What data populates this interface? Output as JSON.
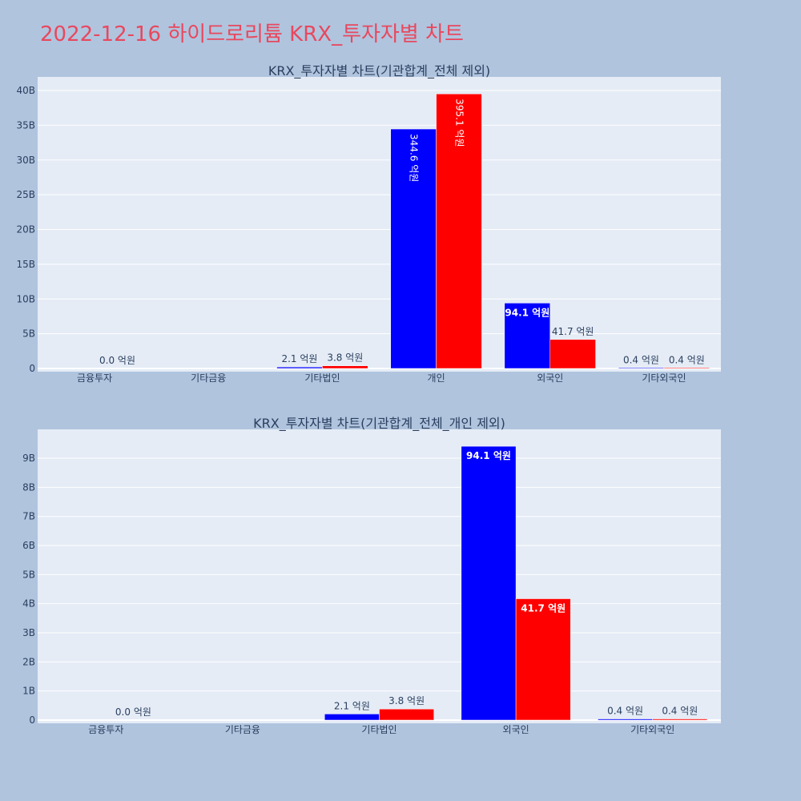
{
  "title": "2022-12-16 하이드로리튬 KRX_투자자별 차트",
  "colors": {
    "buy": "#0000ff",
    "sell": "#ff0000",
    "plot_bg": "#e5ecf6",
    "page_bg": "#b0c4de",
    "title": "#e8485e"
  },
  "chart_data": [
    {
      "type": "bar",
      "title": "KRX_투자자별 차트(기관합계_전체 제외)",
      "categories": [
        "금융투자",
        "기타금융",
        "기타법인",
        "개인",
        "외국인",
        "기타외국인"
      ],
      "series": [
        {
          "values": [
            0,
            0,
            210000000,
            34460000000,
            9410000000,
            40000000
          ],
          "labels": [
            "",
            "",
            "2.1 억원",
            "344.6 억원",
            "94.1 억원",
            "0.4 억원"
          ]
        },
        {
          "values": [
            0,
            0,
            380000000,
            39510000000,
            4170000000,
            40000000
          ],
          "labels": [
            "0.0 억원",
            "",
            "3.8 억원",
            "395.1 억원",
            "41.7 억원",
            "0.4 억원"
          ]
        }
      ],
      "yticks": [
        "0",
        "5B",
        "10B",
        "15B",
        "20B",
        "25B",
        "30B",
        "35B",
        "40B"
      ],
      "ylim": [
        0,
        40000000000
      ]
    },
    {
      "type": "bar",
      "title": "KRX_투자자별 차트(기관합계_전체_개인 제외)",
      "categories": [
        "금융투자",
        "기타금융",
        "기타법인",
        "외국인",
        "기타외국인"
      ],
      "series": [
        {
          "values": [
            0,
            0,
            210000000,
            9410000000,
            40000000
          ],
          "labels": [
            "",
            "",
            "2.1 억원",
            "94.1 억원",
            "0.4 억원"
          ]
        },
        {
          "values": [
            0,
            0,
            380000000,
            4170000000,
            40000000
          ],
          "labels": [
            "0.0 억원",
            "",
            "3.8 억원",
            "41.7 억원",
            "0.4 억원"
          ]
        }
      ],
      "yticks": [
        "0",
        "1B",
        "2B",
        "3B",
        "4B",
        "5B",
        "6B",
        "7B",
        "8B",
        "9B"
      ],
      "ylim": [
        0,
        10000000000
      ]
    }
  ]
}
